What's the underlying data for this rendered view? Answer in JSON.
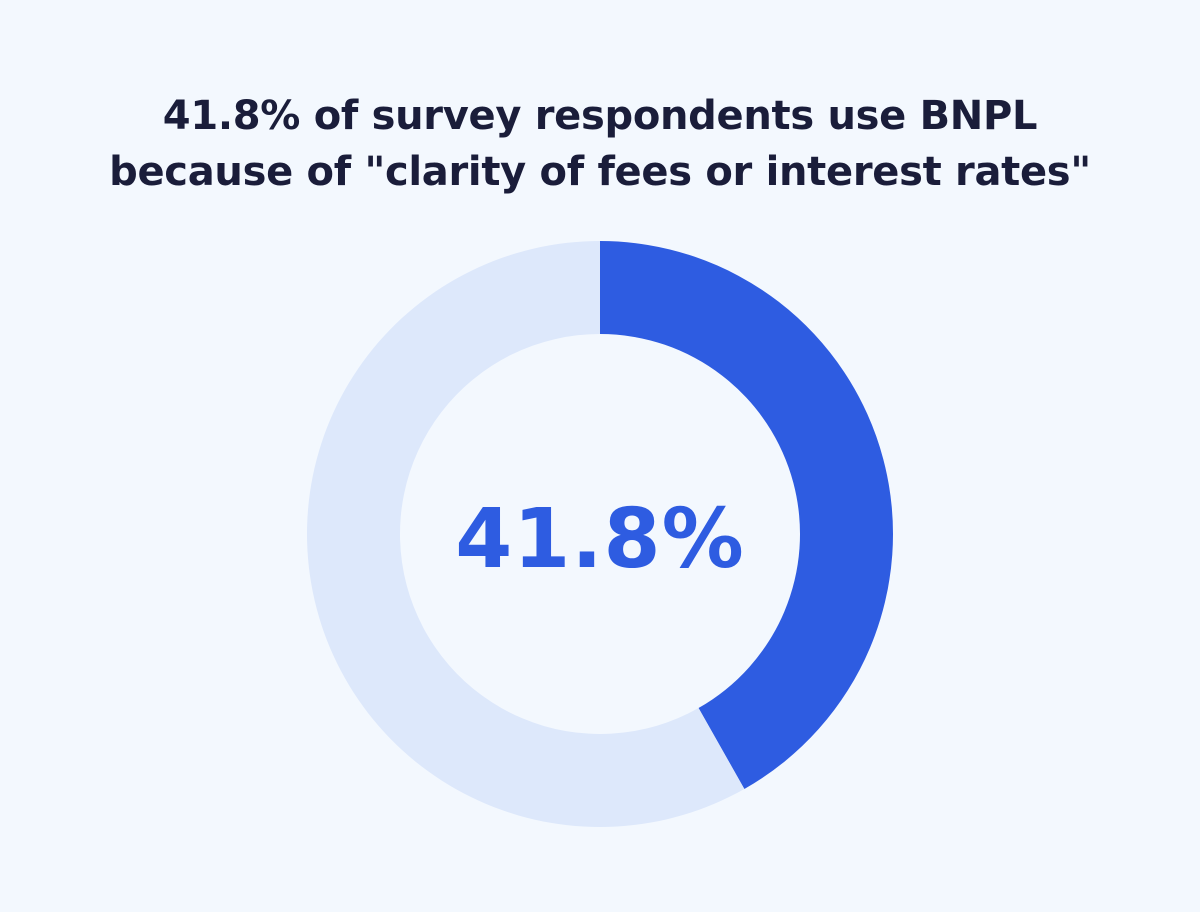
{
  "chart_data": {
    "type": "pie",
    "title": [
      "41.8% of survey respondents use BNPL",
      "because of \"clarity of fees or interest rates\""
    ],
    "center_label": "41.8%",
    "slices": [
      {
        "value": 41.8,
        "color": "#2e5ce1"
      },
      {
        "value": 58.2,
        "color": "#dde8fb"
      }
    ],
    "legend": "none"
  }
}
